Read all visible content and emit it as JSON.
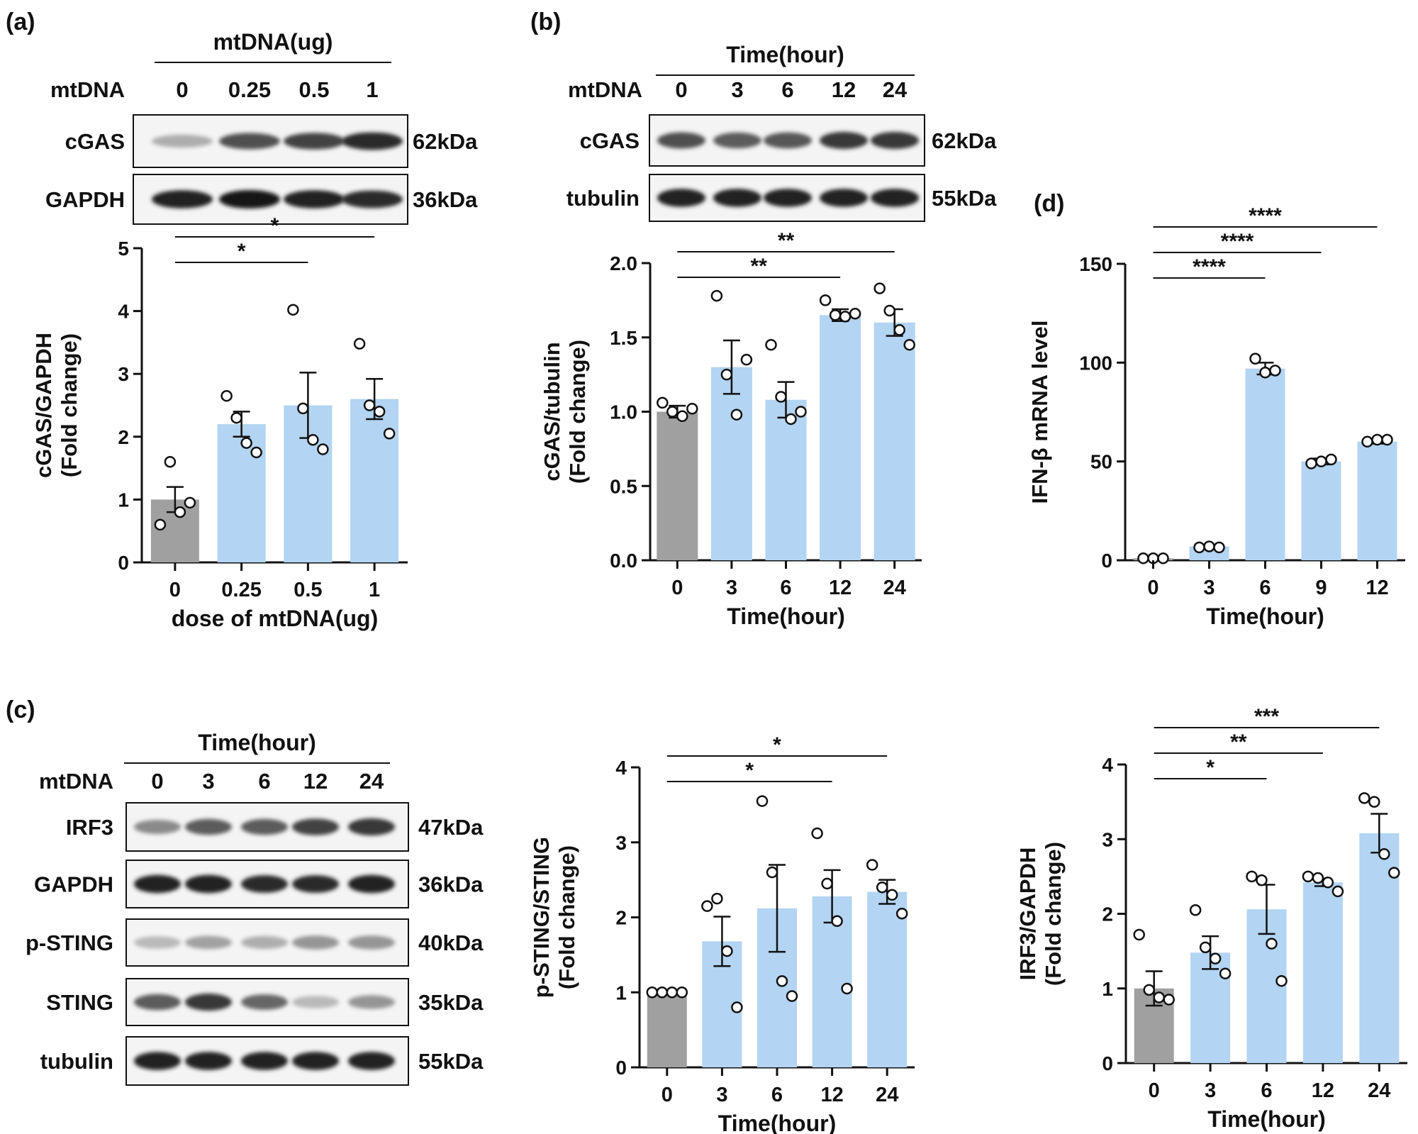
{
  "panels": {
    "a": {
      "label": "(a)",
      "header": "mtDNA(ug)",
      "row_label": "mtDNA",
      "lanes": [
        "0",
        "0.25",
        "0.5",
        "1"
      ],
      "blots": [
        {
          "name": "cGAS",
          "kda": "62kDa"
        },
        {
          "name": "GAPDH",
          "kda": "36kDa"
        }
      ]
    },
    "b": {
      "label": "(b)",
      "header": "Time(hour)",
      "row_label": "mtDNA",
      "lanes": [
        "0",
        "3",
        "6",
        "12",
        "24"
      ],
      "blots": [
        {
          "name": "cGAS",
          "kda": "62kDa"
        },
        {
          "name": "tubulin",
          "kda": "55kDa"
        }
      ]
    },
    "c": {
      "label": "(c)",
      "header": "Time(hour)",
      "row_label": "mtDNA",
      "lanes": [
        "0",
        "3",
        "6",
        "12",
        "24"
      ],
      "blots": [
        {
          "name": "IRF3",
          "kda": "47kDa"
        },
        {
          "name": "GAPDH",
          "kda": "36kDa"
        },
        {
          "name": "p-STING",
          "kda": "40kDa"
        },
        {
          "name": "STING",
          "kda": "35kDa"
        },
        {
          "name": "tubulin",
          "kda": "55kDa"
        }
      ]
    },
    "d": {
      "label": "(d)"
    }
  },
  "colors": {
    "control": "#a0a0a0",
    "treated": "#b3d4f2"
  },
  "chart_data": [
    {
      "id": "a",
      "type": "bar",
      "categories": [
        "0",
        "0.25",
        "0.5",
        "1"
      ],
      "values": [
        1.0,
        2.2,
        2.5,
        2.6
      ],
      "errors": [
        0.2,
        0.2,
        0.52,
        0.32
      ],
      "points": [
        [
          0.6,
          1.6,
          0.8,
          0.95
        ],
        [
          2.65,
          2.3,
          1.9,
          1.75
        ],
        [
          4.02,
          2.45,
          1.95,
          1.8
        ],
        [
          3.48,
          2.5,
          2.4,
          2.05
        ]
      ],
      "ylabel": [
        "cGAS/GAPDH",
        "(Fold change)"
      ],
      "xlabel": "dose of mtDNA(ug)",
      "ylim": [
        0,
        5
      ],
      "yticks": [
        "0",
        "1",
        "2",
        "3",
        "4",
        "5"
      ],
      "significance": [
        {
          "from": 0,
          "to": 2,
          "label": "*"
        },
        {
          "from": 0,
          "to": 3,
          "label": "*"
        }
      ]
    },
    {
      "id": "b",
      "type": "bar",
      "categories": [
        "0",
        "3",
        "6",
        "12",
        "24"
      ],
      "values": [
        1.0,
        1.3,
        1.08,
        1.65,
        1.6
      ],
      "errors": [
        0.04,
        0.18,
        0.12,
        0.04,
        0.09
      ],
      "points": [
        [
          1.06,
          1.0,
          0.97,
          1.02
        ],
        [
          1.78,
          1.25,
          0.98,
          1.35
        ],
        [
          1.45,
          1.1,
          0.95,
          1.0
        ],
        [
          1.75,
          1.65,
          1.64,
          1.66
        ],
        [
          1.83,
          1.68,
          1.55,
          1.45
        ]
      ],
      "ylabel": [
        "cGAS/tubulin",
        "(Fold change)"
      ],
      "xlabel": "Time(hour)",
      "ylim": [
        0,
        2
      ],
      "yticks": [
        "0.0",
        "0.5",
        "1.0",
        "1.5",
        "2.0"
      ],
      "significance": [
        {
          "from": 0,
          "to": 3,
          "label": "**"
        },
        {
          "from": 0,
          "to": 4,
          "label": "**"
        }
      ]
    },
    {
      "id": "c1",
      "type": "bar",
      "categories": [
        "0",
        "3",
        "6",
        "12",
        "24"
      ],
      "values": [
        1.0,
        1.68,
        2.12,
        2.28,
        2.34
      ],
      "errors": [
        0.0,
        0.33,
        0.58,
        0.35,
        0.16
      ],
      "points": [
        [
          1.0,
          1.0,
          1.0,
          1.0
        ],
        [
          2.15,
          2.25,
          1.55,
          0.8
        ],
        [
          3.55,
          2.6,
          1.15,
          0.95
        ],
        [
          3.12,
          2.45,
          1.95,
          1.05
        ],
        [
          2.7,
          2.4,
          2.3,
          2.05
        ]
      ],
      "ylabel": [
        "p-STING/STING",
        "(Fold change)"
      ],
      "xlabel": "Time(hour)",
      "ylim": [
        0,
        4
      ],
      "yticks": [
        "0",
        "1",
        "2",
        "3",
        "4"
      ],
      "significance": [
        {
          "from": 0,
          "to": 3,
          "label": "*"
        },
        {
          "from": 0,
          "to": 4,
          "label": "*"
        }
      ]
    },
    {
      "id": "c2",
      "type": "bar",
      "categories": [
        "0",
        "3",
        "6",
        "12",
        "24"
      ],
      "values": [
        1.0,
        1.48,
        2.06,
        2.42,
        3.08
      ],
      "errors": [
        0.23,
        0.22,
        0.33,
        0.05,
        0.26
      ],
      "points": [
        [
          1.72,
          0.98,
          0.88,
          0.85
        ],
        [
          2.05,
          1.55,
          1.4,
          1.2
        ],
        [
          2.5,
          2.45,
          1.6,
          1.1
        ],
        [
          2.5,
          2.48,
          2.42,
          2.3
        ],
        [
          3.55,
          3.5,
          2.8,
          2.55
        ]
      ],
      "ylabel": [
        "IRF3/GAPDH",
        "(Fold change)"
      ],
      "xlabel": "Time(hour)",
      "ylim": [
        0,
        4
      ],
      "yticks": [
        "0",
        "1",
        "2",
        "3",
        "4"
      ],
      "significance": [
        {
          "from": 0,
          "to": 2,
          "label": "*"
        },
        {
          "from": 0,
          "to": 3,
          "label": "**"
        },
        {
          "from": 0,
          "to": 4,
          "label": "***"
        }
      ]
    },
    {
      "id": "d",
      "type": "bar",
      "categories": [
        "0",
        "3",
        "6",
        "9",
        "12"
      ],
      "values": [
        1.0,
        7.0,
        97.0,
        50.0,
        60.0
      ],
      "errors": [
        0,
        0,
        3.0,
        1.5,
        1.0
      ],
      "points": [
        [
          1.0,
          1.0,
          1.0
        ],
        [
          6.5,
          7.0,
          6.5
        ],
        [
          102.0,
          95.0,
          96.0
        ],
        [
          49.0,
          50.0,
          51.0
        ],
        [
          60.0,
          61.0,
          61.0
        ]
      ],
      "ylabel": [
        "IFN-β mRNA level"
      ],
      "xlabel": "Time(hour)",
      "ylim": [
        0,
        150
      ],
      "yticks": [
        "0",
        "50",
        "100",
        "150"
      ],
      "significance": [
        {
          "from": 0,
          "to": 2,
          "label": "****"
        },
        {
          "from": 0,
          "to": 3,
          "label": "****"
        },
        {
          "from": 0,
          "to": 4,
          "label": "****"
        }
      ]
    }
  ]
}
